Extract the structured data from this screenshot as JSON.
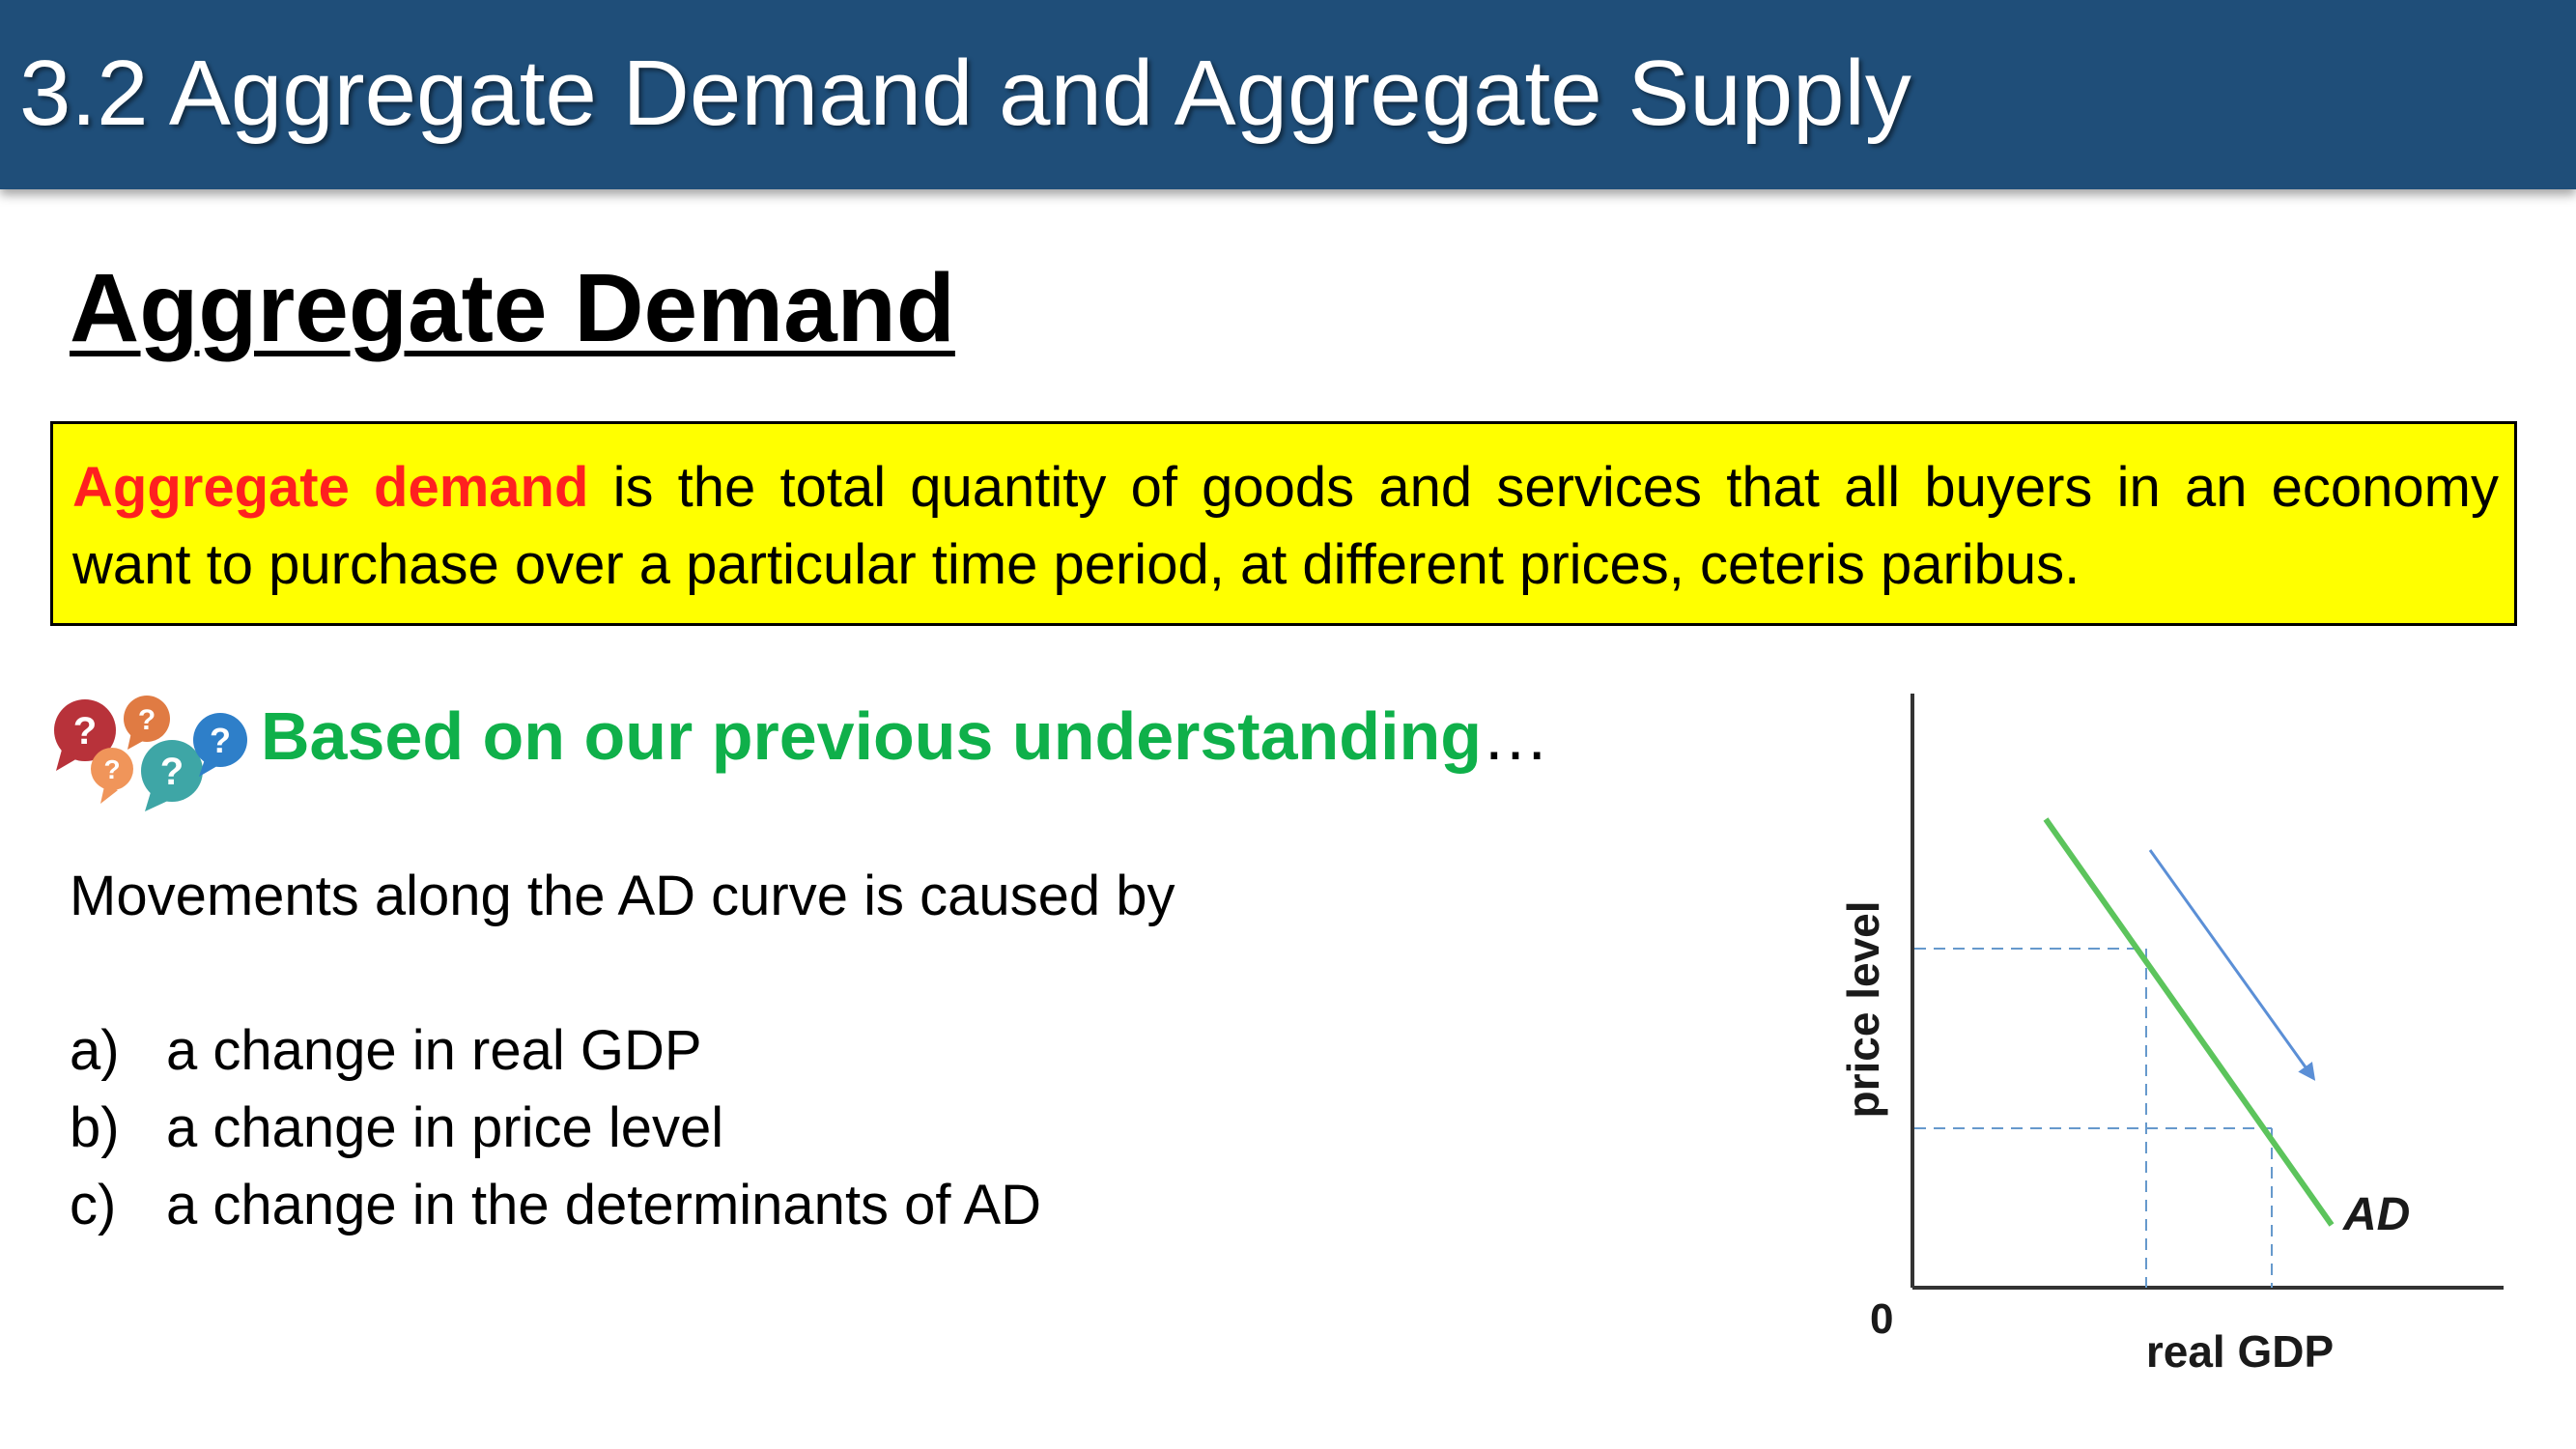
{
  "slide": {
    "title": "3.2 Aggregate Demand and Aggregate Supply",
    "heading": "Aggregate Demand",
    "definition": {
      "term": "Aggregate demand",
      "text": " is the total quantity of goods and services that all buyers in an economy want to purchase over a particular time period, at different prices, ceteris paribus."
    },
    "prompt": {
      "text": "Based on our previous understanding",
      "ellipsis": "…",
      "icon": "question-bubbles-icon"
    },
    "question": "Movements along the AD curve is caused by",
    "options": [
      {
        "letter": "a)",
        "text": "a change in real GDP"
      },
      {
        "letter": "b)",
        "text": "a change in price level"
      },
      {
        "letter": "c)",
        "text": "a change in the determinants of AD"
      }
    ]
  },
  "graph": {
    "y_axis_label": "price level",
    "x_axis_label": "real GDP",
    "origin_label": "0",
    "curve_label": "AD",
    "colors": {
      "title_bar": "#1f4e79",
      "definition_bg": "#ffff00",
      "definition_term": "#ff2020",
      "prompt": "#0fb04a",
      "ad_curve": "#5cc45c",
      "guide_lines": "#6699cc",
      "movement_arrow": "#5b8fd6"
    }
  }
}
